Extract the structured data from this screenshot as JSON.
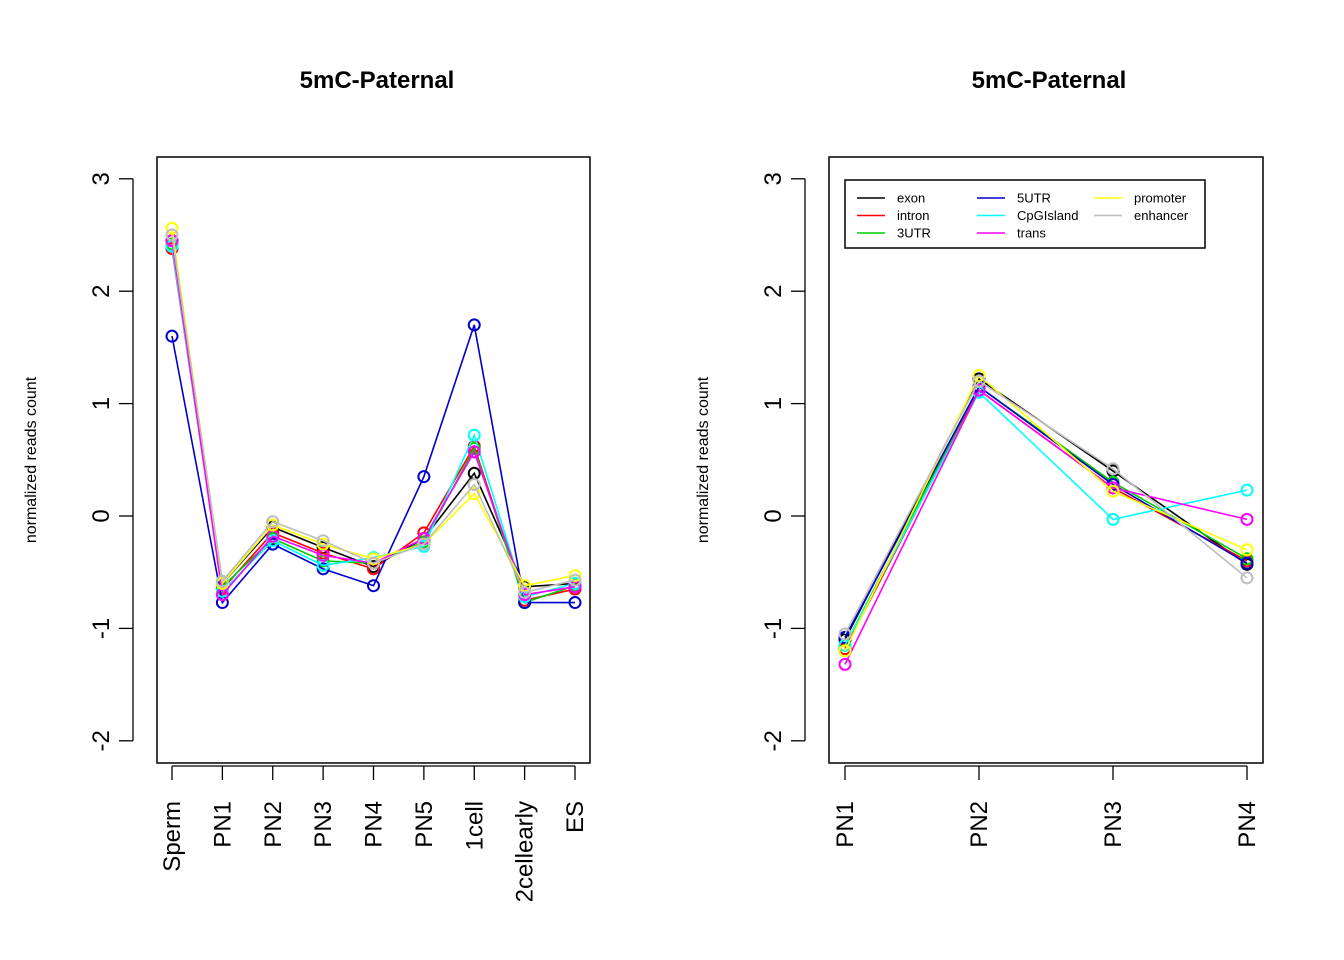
{
  "chart_data": [
    {
      "type": "line",
      "title": "5mC-Paternal",
      "xlabel": "",
      "ylabel": "normalized reads count",
      "categories": [
        "Sperm",
        "PN1",
        "PN2",
        "PN3",
        "PN4",
        "PN5",
        "1cell",
        "2cellearly",
        "ES"
      ],
      "yticks": [
        -2,
        -1,
        0,
        1,
        2,
        3
      ],
      "ylim": [
        -2.2,
        3.2
      ],
      "grid": false,
      "legend": "none",
      "series": [
        {
          "key": "exon",
          "color": "#000000",
          "values": [
            2.45,
            -0.6,
            -0.1,
            -0.28,
            -0.45,
            -0.2,
            0.38,
            -0.63,
            -0.6
          ]
        },
        {
          "key": "intron",
          "color": "#ff0000",
          "values": [
            2.38,
            -0.65,
            -0.15,
            -0.33,
            -0.47,
            -0.15,
            0.62,
            -0.75,
            -0.65
          ]
        },
        {
          "key": "3UTR",
          "color": "#00cd00",
          "values": [
            2.42,
            -0.63,
            -0.2,
            -0.4,
            -0.42,
            -0.23,
            0.6,
            -0.77,
            -0.62
          ]
        },
        {
          "key": "5UTR",
          "color": "#0000cd",
          "values": [
            1.6,
            -0.77,
            -0.25,
            -0.47,
            -0.62,
            0.35,
            1.7,
            -0.77,
            -0.77
          ]
        },
        {
          "key": "CpGIsland",
          "color": "#00ffff",
          "values": [
            2.4,
            -0.67,
            -0.22,
            -0.44,
            -0.37,
            -0.27,
            0.72,
            -0.72,
            -0.6
          ]
        },
        {
          "key": "trans",
          "color": "#ff00ff",
          "values": [
            2.45,
            -0.7,
            -0.18,
            -0.35,
            -0.42,
            -0.2,
            0.57,
            -0.7,
            -0.63
          ]
        },
        {
          "key": "promoter",
          "color": "#ffff00",
          "values": [
            2.56,
            -0.6,
            -0.08,
            -0.25,
            -0.38,
            -0.25,
            0.2,
            -0.62,
            -0.53
          ]
        },
        {
          "key": "enhancer",
          "color": "#bebebe",
          "values": [
            2.5,
            -0.58,
            -0.05,
            -0.22,
            -0.42,
            -0.25,
            0.28,
            -0.68,
            -0.57
          ]
        }
      ]
    },
    {
      "type": "line",
      "title": "5mC-Paternal",
      "xlabel": "",
      "ylabel": "normalized reads count",
      "categories": [
        "PN1",
        "PN2",
        "PN3",
        "PN4"
      ],
      "yticks": [
        -2,
        -1,
        0,
        1,
        2,
        3
      ],
      "ylim": [
        -2.2,
        3.2
      ],
      "grid": false,
      "legend": "top-left",
      "series": [
        {
          "name": "exon",
          "color": "#000000",
          "values": [
            -1.1,
            1.22,
            0.4,
            -0.43
          ]
        },
        {
          "name": "intron",
          "color": "#ff0000",
          "values": [
            -1.18,
            1.12,
            0.25,
            -0.4
          ]
        },
        {
          "name": "3UTR",
          "color": "#00cd00",
          "values": [
            -1.15,
            1.15,
            0.3,
            -0.38
          ]
        },
        {
          "name": "5UTR",
          "color": "#0000cd",
          "values": [
            -1.08,
            1.15,
            0.28,
            -0.42
          ]
        },
        {
          "name": "CpGIsland",
          "color": "#00ffff",
          "values": [
            -1.15,
            1.1,
            -0.03,
            0.23
          ]
        },
        {
          "name": "trans",
          "color": "#ff00ff",
          "values": [
            -1.32,
            1.12,
            0.25,
            -0.03
          ]
        },
        {
          "name": "promoter",
          "color": "#ffff00",
          "values": [
            -1.2,
            1.25,
            0.22,
            -0.3
          ]
        },
        {
          "name": "enhancer",
          "color": "#bebebe",
          "values": [
            -1.05,
            1.2,
            0.42,
            -0.55
          ]
        }
      ]
    }
  ]
}
